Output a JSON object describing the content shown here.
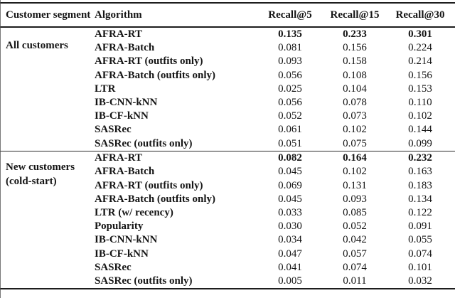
{
  "table": {
    "headers": {
      "segment": "Customer segment",
      "algorithm": "Algorithm",
      "metrics": [
        "Recall@5",
        "Recall@15",
        "Recall@30"
      ]
    },
    "sections": [
      {
        "segment": "All customers",
        "segment_lines": [
          "All customers"
        ],
        "rows": [
          {
            "algorithm": "AFRA-RT",
            "values": [
              "0.135",
              "0.233",
              "0.301"
            ],
            "weight": "bold"
          },
          {
            "algorithm": "AFRA-Batch",
            "values": [
              "0.081",
              "0.156",
              "0.224"
            ],
            "weight": "normal"
          },
          {
            "algorithm": "AFRA-RT (outfits only)",
            "values": [
              "0.093",
              "0.158",
              "0.214"
            ],
            "weight": "normal"
          },
          {
            "algorithm": "AFRA-Batch (outfits only)",
            "values": [
              "0.056",
              "0.108",
              "0.156"
            ],
            "weight": "normal"
          },
          {
            "algorithm": "LTR",
            "values": [
              "0.025",
              "0.104",
              "0.153"
            ],
            "weight": "normal"
          },
          {
            "algorithm": "IB-CNN-kNN",
            "values": [
              "0.056",
              "0.078",
              "0.110"
            ],
            "weight": "normal"
          },
          {
            "algorithm": "IB-CF-kNN",
            "values": [
              "0.052",
              "0.073",
              "0.102"
            ],
            "weight": "normal"
          },
          {
            "algorithm": "SASRec",
            "values": [
              "0.061",
              "0.102",
              "0.144"
            ],
            "weight": "normal"
          },
          {
            "algorithm": "SASRec (outfits only)",
            "values": [
              "0.051",
              "0.075",
              "0.099"
            ],
            "weight": "normal"
          }
        ]
      },
      {
        "segment": "New customers (cold-start)",
        "segment_lines": [
          "New customers",
          "(cold-start)"
        ],
        "rows": [
          {
            "algorithm": "AFRA-RT",
            "values": [
              "0.082",
              "0.164",
              "0.232"
            ],
            "weight": "bold"
          },
          {
            "algorithm": "AFRA-Batch",
            "values": [
              "0.045",
              "0.102",
              "0.163"
            ],
            "weight": "normal"
          },
          {
            "algorithm": "AFRA-RT (outfits only)",
            "values": [
              "0.069",
              "0.131",
              "0.183"
            ],
            "weight": "normal"
          },
          {
            "algorithm": "AFRA-Batch (outfits only)",
            "values": [
              "0.045",
              "0.093",
              "0.134"
            ],
            "weight": "normal"
          },
          {
            "algorithm": "LTR (w/ recency)",
            "values": [
              "0.033",
              "0.085",
              "0.122"
            ],
            "weight": "normal"
          },
          {
            "algorithm": "Popularity",
            "values": [
              "0.030",
              "0.052",
              "0.091"
            ],
            "weight": "normal"
          },
          {
            "algorithm": "IB-CNN-kNN",
            "values": [
              "0.034",
              "0.042",
              "0.055"
            ],
            "weight": "normal"
          },
          {
            "algorithm": "IB-CF-kNN",
            "values": [
              "0.047",
              "0.057",
              "0.074"
            ],
            "weight": "normal"
          },
          {
            "algorithm": "SASRec",
            "values": [
              "0.041",
              "0.074",
              "0.101"
            ],
            "weight": "normal"
          },
          {
            "algorithm": "SASRec (outfits only)",
            "values": [
              "0.005",
              "0.011",
              "0.032"
            ],
            "weight": "normal"
          }
        ]
      }
    ]
  }
}
